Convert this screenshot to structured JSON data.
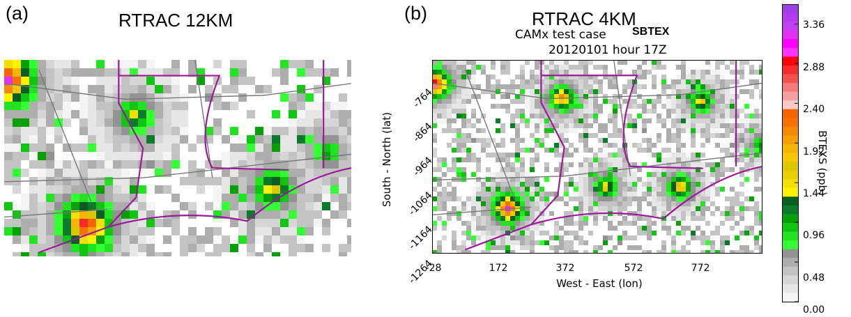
{
  "panel_a": {
    "letter": "(a)",
    "title": "RTRAC 12KM"
  },
  "panel_b": {
    "letter": "(b)",
    "title": "RTRAC 4KM",
    "subtitle_line1": "CAMx test case",
    "subtitle_line2": "20120101 hour 17Z",
    "species_tag": "SBTEX"
  },
  "chart_data": [
    {
      "type": "heatmap",
      "panel": "a",
      "title": "RTRAC 12KM",
      "xlabel": "",
      "ylabel": "",
      "grid": false,
      "hotspots": [
        {
          "x": -28,
          "y": -764,
          "value": 3.4
        },
        {
          "x": 172,
          "y": -1164,
          "value": 3.2
        },
        {
          "x": 300,
          "y": -864,
          "value": 1.6
        },
        {
          "x": 660,
          "y": -1064,
          "value": 1.9
        },
        {
          "x": 800,
          "y": -964,
          "value": 1.2
        }
      ]
    },
    {
      "type": "heatmap",
      "panel": "b",
      "title": "RTRAC 4KM",
      "xlabel": "West - East (lon)",
      "ylabel": "South - North (lat)",
      "x_ticks": [
        -28,
        172,
        372,
        572,
        772
      ],
      "y_ticks": [
        -764,
        -864,
        -964,
        -1064,
        -1164,
        -1264
      ],
      "xlim": [
        -28,
        872
      ],
      "ylim": [
        -1264,
        -720
      ],
      "grid": false,
      "hotspots": [
        {
          "x": -28,
          "y": -780,
          "value": 3.4
        },
        {
          "x": 172,
          "y": -1130,
          "value": 3.3
        },
        {
          "x": 320,
          "y": -820,
          "value": 2.4
        },
        {
          "x": 440,
          "y": -1070,
          "value": 1.9
        },
        {
          "x": 640,
          "y": -1070,
          "value": 2.2
        },
        {
          "x": 700,
          "y": -830,
          "value": 1.9
        },
        {
          "x": 860,
          "y": -950,
          "value": 1.3
        }
      ],
      "colorbar": {
        "label": "BTEXS (ppb)",
        "range": [
          0.0,
          3.6
        ],
        "tick_labels": [
          "3.36",
          "2.88",
          "2.40",
          "1.92",
          "1.44",
          "0.96",
          "0.48",
          "0.00"
        ],
        "tick_values": [
          3.36,
          2.88,
          2.4,
          1.92,
          1.44,
          0.96,
          0.48,
          0.0
        ],
        "colors": [
          "#f4f4f4",
          "#e6e6e6",
          "#d6d6d6",
          "#c3c3c3",
          "#adadad",
          "#939393",
          "#33ff33",
          "#22e222",
          "#12c412",
          "#08a008",
          "#0b7a2a",
          "#0a5e1f",
          "#fff200",
          "#f4e000",
          "#e6d000",
          "#dcc800",
          "#f7c700",
          "#f5b500",
          "#f5a000",
          "#f58a00",
          "#f57100",
          "#f56400",
          "#f9c8c8",
          "#f5a0a0",
          "#f57a7a",
          "#f55050",
          "#f52a2a",
          "#ff0000",
          "#ff33ff",
          "#ff00ff",
          "#e030f0",
          "#c040f0",
          "#b33cf0",
          "#a040e6"
        ]
      }
    }
  ]
}
